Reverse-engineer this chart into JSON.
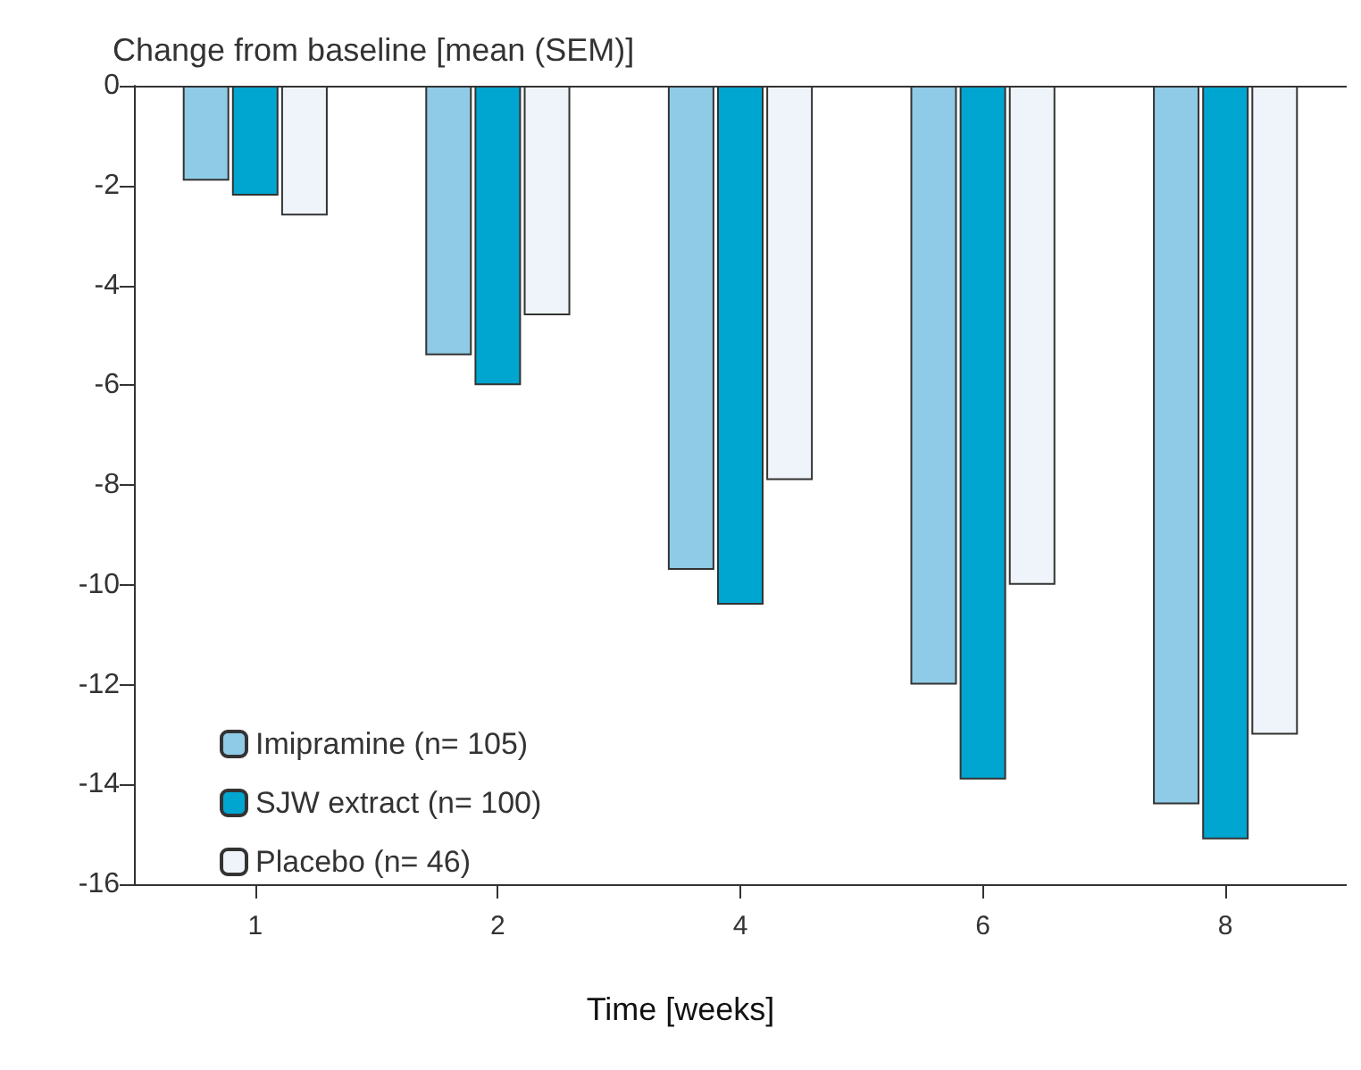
{
  "chart_data": {
    "type": "bar",
    "ylabel": "Change from baseline [mean (SEM)]",
    "xlabel": "Time [weeks]",
    "categories": [
      "1",
      "2",
      "4",
      "6",
      "8"
    ],
    "series": [
      {
        "name": "Imipramine (n= 105)",
        "color": "#8fcbe6",
        "values": [
          -1.9,
          -5.4,
          -9.7,
          -12.0,
          -14.4
        ]
      },
      {
        "name": "SJW extract (n= 100)",
        "color": "#00a5d0",
        "values": [
          -2.2,
          -6.0,
          -10.4,
          -13.9,
          -15.1
        ]
      },
      {
        "name": "Placebo (n= 46)",
        "color": "#eef4f9",
        "values": [
          -2.6,
          -4.6,
          -7.9,
          -10.0,
          -13.0
        ]
      }
    ],
    "ylim": [
      -16,
      0
    ],
    "yticks": [
      -16,
      -14,
      -12,
      -10,
      -8,
      -6,
      -4,
      -2,
      0
    ],
    "grid": false,
    "legend": "bottom left"
  }
}
